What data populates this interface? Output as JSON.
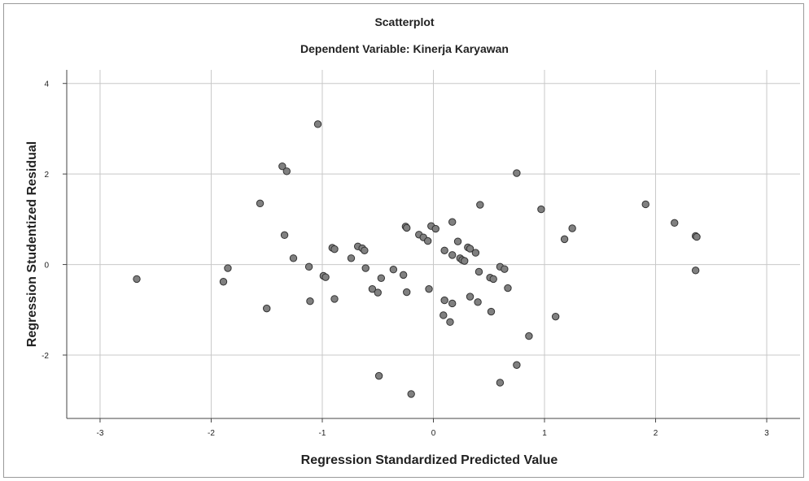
{
  "chart_data": {
    "type": "scatter",
    "title": "Scatterplot",
    "subtitle": "Dependent Variable: Kinerja Karyawan",
    "xlabel": "Regression Standardized Predicted Value",
    "ylabel": "Regression Studentized Residual",
    "xlim": [
      -3.3,
      3.3
    ],
    "ylim": [
      -3.4,
      4.3
    ],
    "x_ticks": [
      -3,
      -2,
      -1,
      0,
      1,
      2,
      3
    ],
    "y_ticks": [
      -2,
      0,
      2,
      4
    ],
    "x_tick_labels": [
      "-3",
      "-2",
      "-1",
      "0",
      "1",
      "2",
      "3"
    ],
    "y_tick_labels": [
      "-2",
      "0",
      "2",
      "4"
    ],
    "grid": true,
    "marker_color": "#808080",
    "marker_edge_color": "#333333",
    "points": [
      {
        "x": -2.67,
        "y": -0.32
      },
      {
        "x": -1.89,
        "y": -0.38
      },
      {
        "x": -1.85,
        "y": -0.08
      },
      {
        "x": -1.56,
        "y": 1.35
      },
      {
        "x": -1.5,
        "y": -0.97
      },
      {
        "x": -1.36,
        "y": 2.17
      },
      {
        "x": -1.34,
        "y": 0.65
      },
      {
        "x": -1.32,
        "y": 2.06
      },
      {
        "x": -1.26,
        "y": 0.14
      },
      {
        "x": -1.12,
        "y": -0.05
      },
      {
        "x": -1.11,
        "y": -0.81
      },
      {
        "x": -1.04,
        "y": 3.1
      },
      {
        "x": -0.99,
        "y": -0.25
      },
      {
        "x": -0.97,
        "y": -0.28
      },
      {
        "x": -0.91,
        "y": 0.37
      },
      {
        "x": -0.89,
        "y": 0.34
      },
      {
        "x": -0.89,
        "y": -0.76
      },
      {
        "x": -0.74,
        "y": 0.14
      },
      {
        "x": -0.68,
        "y": 0.4
      },
      {
        "x": -0.64,
        "y": 0.36
      },
      {
        "x": -0.62,
        "y": 0.31
      },
      {
        "x": -0.61,
        "y": -0.08
      },
      {
        "x": -0.55,
        "y": -0.54
      },
      {
        "x": -0.5,
        "y": -0.62
      },
      {
        "x": -0.49,
        "y": -2.46
      },
      {
        "x": -0.47,
        "y": -0.3
      },
      {
        "x": -0.36,
        "y": -0.11
      },
      {
        "x": -0.27,
        "y": -0.23
      },
      {
        "x": -0.25,
        "y": 0.84
      },
      {
        "x": -0.24,
        "y": 0.81
      },
      {
        "x": -0.24,
        "y": -0.61
      },
      {
        "x": -0.2,
        "y": -2.86
      },
      {
        "x": -0.13,
        "y": 0.66
      },
      {
        "x": -0.09,
        "y": 0.6
      },
      {
        "x": -0.05,
        "y": 0.52
      },
      {
        "x": -0.04,
        "y": -0.54
      },
      {
        "x": -0.02,
        "y": 0.85
      },
      {
        "x": 0.02,
        "y": 0.79
      },
      {
        "x": 0.09,
        "y": -1.12
      },
      {
        "x": 0.1,
        "y": 0.31
      },
      {
        "x": 0.1,
        "y": -0.79
      },
      {
        "x": 0.15,
        "y": -1.27
      },
      {
        "x": 0.17,
        "y": -0.86
      },
      {
        "x": 0.17,
        "y": 0.21
      },
      {
        "x": 0.17,
        "y": 0.94
      },
      {
        "x": 0.22,
        "y": 0.51
      },
      {
        "x": 0.24,
        "y": 0.14
      },
      {
        "x": 0.26,
        "y": 0.1
      },
      {
        "x": 0.28,
        "y": 0.08
      },
      {
        "x": 0.31,
        "y": 0.38
      },
      {
        "x": 0.33,
        "y": 0.35
      },
      {
        "x": 0.33,
        "y": -0.71
      },
      {
        "x": 0.38,
        "y": 0.26
      },
      {
        "x": 0.4,
        "y": -0.83
      },
      {
        "x": 0.41,
        "y": -0.16
      },
      {
        "x": 0.42,
        "y": 1.32
      },
      {
        "x": 0.51,
        "y": -0.29
      },
      {
        "x": 0.52,
        "y": -1.04
      },
      {
        "x": 0.54,
        "y": -0.32
      },
      {
        "x": 0.6,
        "y": -0.05
      },
      {
        "x": 0.6,
        "y": -2.61
      },
      {
        "x": 0.64,
        "y": -0.1
      },
      {
        "x": 0.67,
        "y": -0.52
      },
      {
        "x": 0.75,
        "y": 2.02
      },
      {
        "x": 0.75,
        "y": -2.22
      },
      {
        "x": 0.86,
        "y": -1.58
      },
      {
        "x": 0.97,
        "y": 1.22
      },
      {
        "x": 1.1,
        "y": -1.15
      },
      {
        "x": 1.18,
        "y": 0.56
      },
      {
        "x": 1.25,
        "y": 0.8
      },
      {
        "x": 1.91,
        "y": 1.33
      },
      {
        "x": 2.17,
        "y": 0.92
      },
      {
        "x": 2.36,
        "y": 0.63
      },
      {
        "x": 2.37,
        "y": 0.61
      },
      {
        "x": 2.36,
        "y": -0.13
      }
    ]
  }
}
